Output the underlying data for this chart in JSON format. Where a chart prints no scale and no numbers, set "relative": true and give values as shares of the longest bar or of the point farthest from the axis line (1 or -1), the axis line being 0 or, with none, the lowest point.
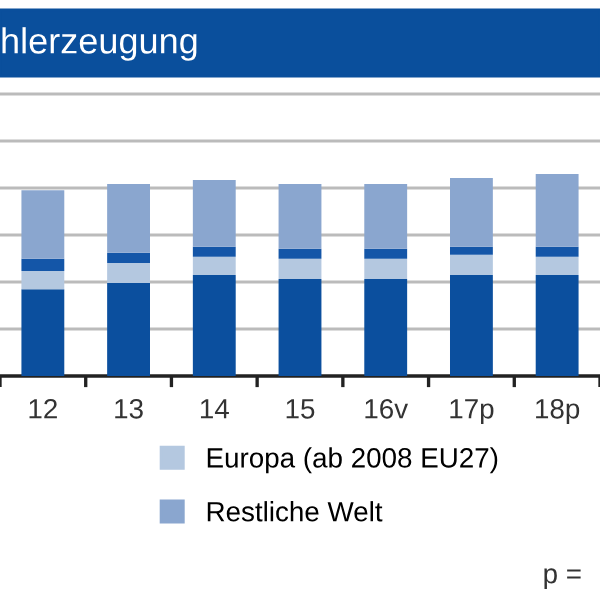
{
  "chart_data": {
    "type": "bar",
    "title": "hlerzeugung",
    "stacked": true,
    "relative": true,
    "grid": "y",
    "legend": "bottom",
    "categories": [
      "12",
      "13",
      "14",
      "15",
      "16v",
      "17p",
      "18p"
    ],
    "series": [
      {
        "color": "#0b4f9e",
        "values": [
          0.43,
          0.46,
          0.5,
          0.48,
          0.48,
          0.5,
          0.5
        ]
      },
      {
        "name": "Europa (ab 2008 EU27)",
        "color": "#b4c8e0",
        "values": [
          0.09,
          0.1,
          0.09,
          0.1,
          0.1,
          0.1,
          0.09
        ]
      },
      {
        "color": "#1456a8",
        "values": [
          0.06,
          0.05,
          0.05,
          0.05,
          0.05,
          0.04,
          0.05
        ]
      },
      {
        "name": "Restliche Welt",
        "color": "#8aa6cf",
        "values": [
          0.34,
          0.34,
          0.33,
          0.32,
          0.32,
          0.34,
          0.36
        ]
      }
    ],
    "annotations": [
      "p ="
    ]
  }
}
